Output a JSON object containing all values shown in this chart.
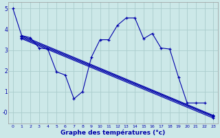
{
  "xlabel": "Graphe des températures (°c)",
  "bg_color": "#cce8e8",
  "line_color": "#0000aa",
  "grid_color": "#aacccc",
  "ylim": [
    -0.55,
    5.3
  ],
  "xlim": [
    -0.5,
    23.5
  ],
  "yticks": [
    0,
    1,
    2,
    3,
    4,
    5
  ],
  "ytick_labels": [
    "-0",
    "1",
    "2",
    "3",
    "4",
    "5"
  ],
  "xticks": [
    0,
    1,
    2,
    3,
    4,
    5,
    6,
    7,
    8,
    9,
    10,
    11,
    12,
    13,
    14,
    15,
    16,
    17,
    18,
    19,
    20,
    21,
    22,
    23
  ],
  "lines": [
    {
      "x": [
        0,
        1,
        2,
        3,
        4,
        5,
        6,
        7,
        8,
        9,
        10,
        11,
        12,
        13,
        14,
        15,
        16,
        17,
        18,
        19,
        20,
        21,
        22,
        23
      ],
      "y": [
        5.0,
        3.7,
        3.6,
        3.1,
        3.05,
        1.95,
        1.8,
        0.65,
        1.0,
        2.65,
        3.5,
        3.5,
        4.2,
        4.55,
        4.55,
        3.55,
        3.8,
        3.1,
        3.05,
        1.7,
        0.45,
        0.45,
        0.45,
        null
      ]
    },
    {
      "x": [
        1,
        23
      ],
      "y": [
        3.7,
        -0.15
      ]
    },
    {
      "x": [
        1,
        23
      ],
      "y": [
        3.65,
        -0.18
      ]
    },
    {
      "x": [
        1,
        23
      ],
      "y": [
        3.6,
        -0.22
      ]
    },
    {
      "x": [
        1,
        23
      ],
      "y": [
        3.55,
        -0.28
      ]
    }
  ]
}
